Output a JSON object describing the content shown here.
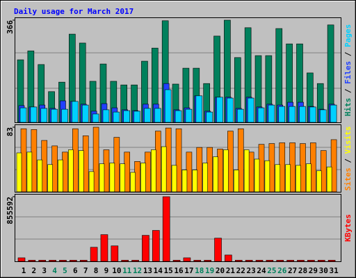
{
  "title": "Daily usage for March 2017",
  "chart_data": [
    {
      "type": "bar",
      "ylim": [
        0,
        366
      ],
      "yticks": [
        366
      ],
      "legend_separator": "/",
      "series": [
        {
          "name": "Hits",
          "color": "#00805c",
          "values": [
            224,
            256,
            207,
            110,
            144,
            316,
            284,
            147,
            209,
            147,
            134,
            134,
            219,
            266,
            364,
            137,
            194,
            194,
            139,
            309,
            366,
            232,
            339,
            239,
            239,
            336,
            281,
            281,
            177,
            139,
            349
          ]
        },
        {
          "name": "Files",
          "color": "#2040ff",
          "values": [
            60,
            55,
            62,
            50,
            77,
            75,
            65,
            40,
            67,
            52,
            45,
            42,
            65,
            65,
            139,
            45,
            52,
            95,
            40,
            90,
            90,
            50,
            90,
            55,
            65,
            62,
            72,
            72,
            57,
            47,
            65
          ]
        },
        {
          "name": "Pages",
          "color": "#00d0ff",
          "values": [
            52,
            55,
            50,
            47,
            47,
            75,
            62,
            30,
            45,
            37,
            42,
            40,
            50,
            50,
            117,
            42,
            47,
            95,
            37,
            90,
            87,
            47,
            87,
            52,
            62,
            57,
            57,
            57,
            55,
            45,
            62
          ]
        }
      ]
    },
    {
      "type": "bar",
      "ylim": [
        0,
        83
      ],
      "yticks": [
        83
      ],
      "legend_separator": "/",
      "series": [
        {
          "name": "Sites",
          "color": "#ff8000",
          "values": [
            81,
            80,
            66,
            59,
            51,
            81,
            72,
            83,
            54,
            70,
            51,
            39,
            51,
            78,
            82,
            81,
            51,
            57,
            57,
            55,
            78,
            81,
            51,
            61,
            62,
            63,
            63,
            62,
            63,
            53,
            67
          ]
        },
        {
          "name": "Visits",
          "color": "#ffff00",
          "values": [
            50,
            51,
            41,
            35,
            41,
            54,
            53,
            26,
            36,
            37,
            36,
            25,
            37,
            54,
            58,
            34,
            28,
            28,
            37,
            45,
            54,
            28,
            54,
            42,
            40,
            35,
            35,
            34,
            36,
            27,
            32
          ]
        }
      ]
    },
    {
      "type": "bar",
      "ylim": [
        0,
        855592
      ],
      "yticks": [
        855592
      ],
      "categories": [
        "1",
        "2",
        "3",
        "4",
        "5",
        "6",
        "7",
        "8",
        "9",
        "10",
        "11",
        "12",
        "13",
        "14",
        "15",
        "16",
        "17",
        "18",
        "19",
        "20",
        "21",
        "22",
        "23",
        "24",
        "25",
        "26",
        "27",
        "28",
        "29",
        "30",
        "31"
      ],
      "category_colors": [
        "#000000",
        "#000000",
        "#000000",
        "#00805c",
        "#00805c",
        "#000000",
        "#000000",
        "#000000",
        "#000000",
        "#000000",
        "#00805c",
        "#00805c",
        "#000000",
        "#000000",
        "#000000",
        "#000000",
        "#000000",
        "#00805c",
        "#00805c",
        "#000000",
        "#000000",
        "#000000",
        "#000000",
        "#000000",
        "#00805c",
        "#00805c",
        "#000000",
        "#000000",
        "#000000",
        "#000000",
        "#000000"
      ],
      "series": [
        {
          "name": "KBytes",
          "color": "#ff0000",
          "values": [
            46500,
            15000,
            15000,
            15000,
            15000,
            15000,
            15000,
            186000,
            353400,
            204600,
            15000,
            15000,
            344100,
            409200,
            855592,
            15000,
            46500,
            15000,
            15000,
            306900,
            83700,
            15000,
            15000,
            15000,
            15000,
            15000,
            15000,
            15000,
            15000,
            15000,
            15000
          ]
        }
      ]
    }
  ]
}
